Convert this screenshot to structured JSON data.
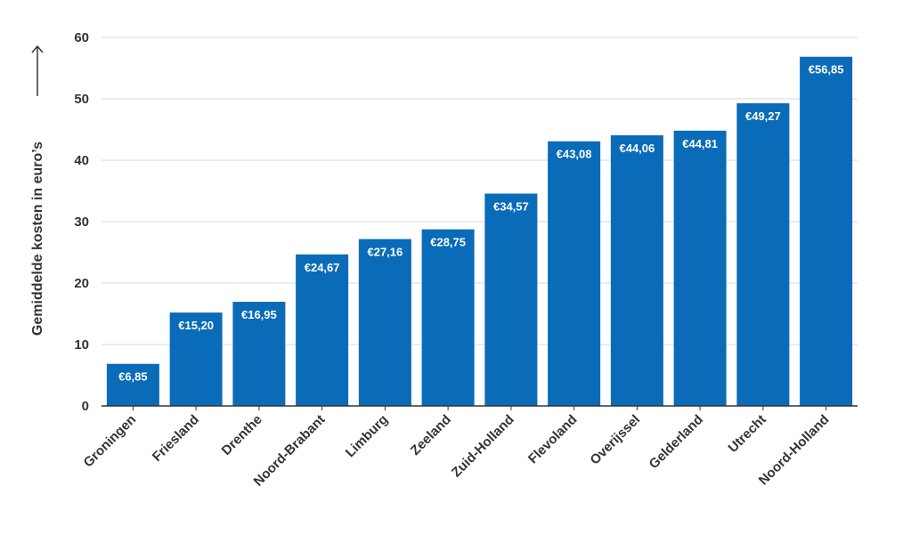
{
  "chart_data": {
    "type": "bar",
    "title": "",
    "xlabel": "",
    "ylabel": "Gemiddelde kosten in euro’s",
    "categories": [
      "Groningen",
      "Friesland",
      "Drenthe",
      "Noord-Brabant",
      "Limburg",
      "Zeeland",
      "Zuid-Holland",
      "Flevoland",
      "Overijssel",
      "Gelderland",
      "Utrecht",
      "Noord-Holland"
    ],
    "values": [
      6.85,
      15.2,
      16.95,
      24.67,
      27.16,
      28.75,
      34.57,
      43.08,
      44.06,
      44.81,
      49.27,
      56.85
    ],
    "data_labels": [
      "€6,85",
      "€15,20",
      "€16,95",
      "€24,67",
      "€27,16",
      "€28,75",
      "€34,57",
      "€43,08",
      "€44,06",
      "€44,81",
      "€49,27",
      "€56,85"
    ],
    "yticks": [
      0,
      10,
      20,
      30,
      40,
      50,
      60
    ],
    "ylim": [
      0,
      60
    ],
    "grid": true,
    "legend": "none",
    "bar_color": "#0a6bb8",
    "label_color": "#ffffff",
    "text_color": "#333333",
    "grid_color": "#d9d9d9"
  }
}
